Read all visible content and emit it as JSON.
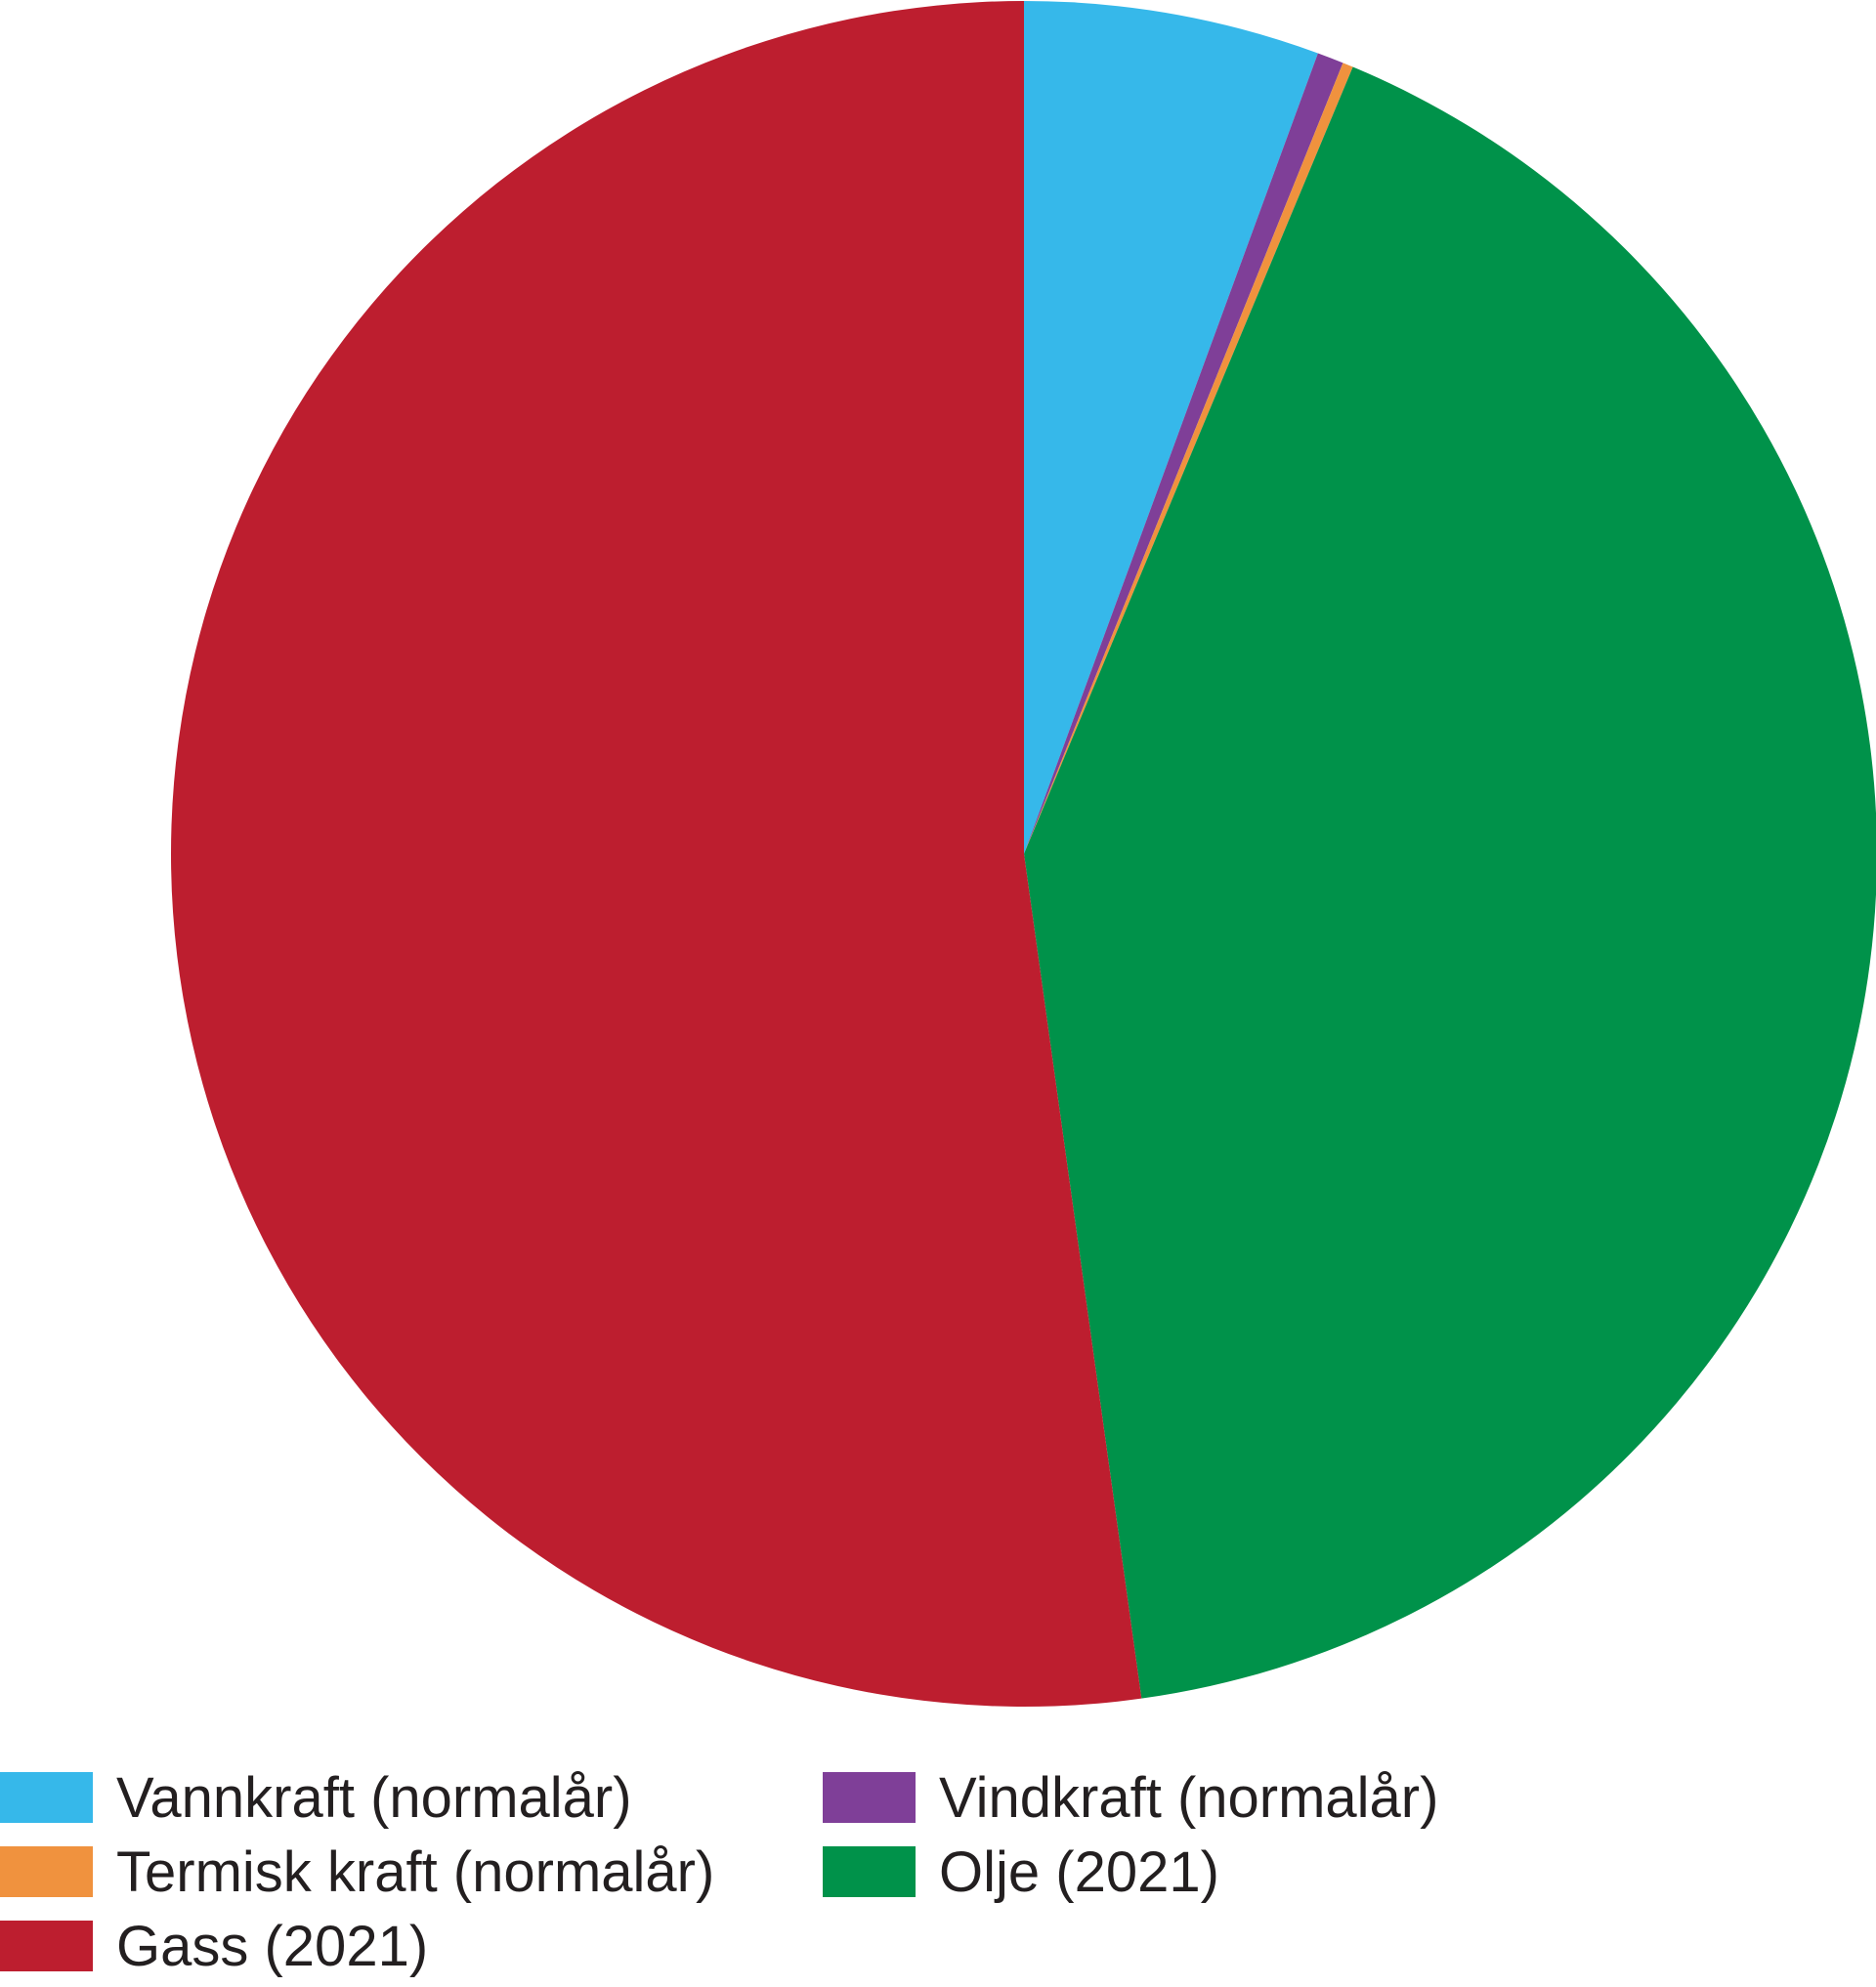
{
  "chart_data": {
    "type": "pie",
    "title": "",
    "start": "top",
    "direction": "clockwise",
    "legend_position": "bottom",
    "slices": [
      {
        "label": "Vannkraft (normalår)",
        "value": 5.6,
        "color": "#36b8ea"
      },
      {
        "label": "Vindkraft (normalår)",
        "value": 0.5,
        "color": "#7f3f98"
      },
      {
        "label": "Termisk kraft (normalår)",
        "value": 0.2,
        "color": "#f0923e"
      },
      {
        "label": "Olje (2021)",
        "value": 41.5,
        "color": "#00924a"
      },
      {
        "label": "Gass (2021)",
        "value": 52.2,
        "color": "#bd1e2f"
      }
    ]
  }
}
